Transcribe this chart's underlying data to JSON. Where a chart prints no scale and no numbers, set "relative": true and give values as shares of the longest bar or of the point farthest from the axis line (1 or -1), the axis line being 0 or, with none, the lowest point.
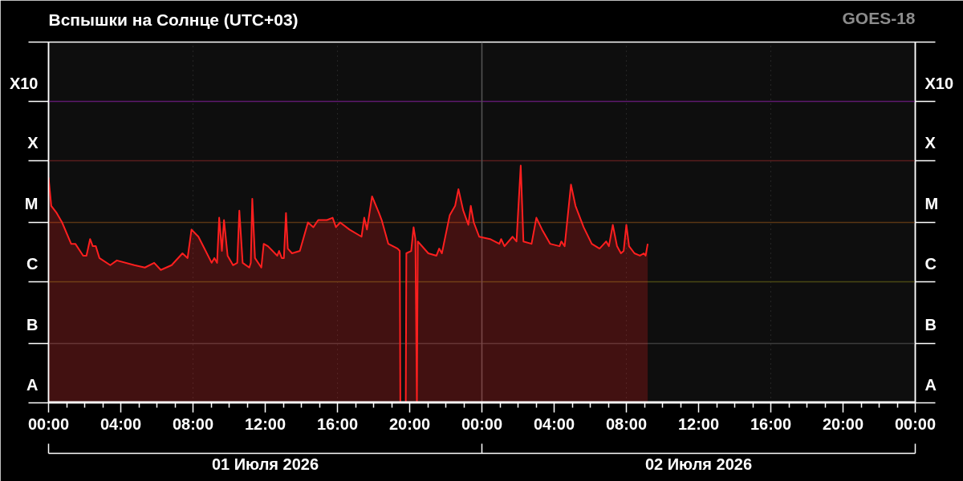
{
  "chart_data": {
    "type": "area",
    "title": "Вспышки на Солнце (UTC+03)",
    "annotations": [
      "GOES-18"
    ],
    "relative": true,
    "grid": "x",
    "xlim": [
      "2026-07-01T00:00",
      "2026-07-03T00:00"
    ],
    "xticks": [
      {
        "value": "2026-07-01T00:00",
        "label": "00:00"
      },
      {
        "value": "2026-07-01T01:00",
        "label": null
      },
      {
        "value": "2026-07-01T02:00",
        "label": null
      },
      {
        "value": "2026-07-01T03:00",
        "label": null
      },
      {
        "value": "2026-07-01T04:00",
        "label": "04:00"
      },
      {
        "value": "2026-07-01T05:00",
        "label": null
      },
      {
        "value": "2026-07-01T06:00",
        "label": null
      },
      {
        "value": "2026-07-01T07:00",
        "label": null
      },
      {
        "value": "2026-07-01T08:00",
        "label": "08:00"
      },
      {
        "value": "2026-07-01T09:00",
        "label": null
      },
      {
        "value": "2026-07-01T10:00",
        "label": null
      },
      {
        "value": "2026-07-01T11:00",
        "label": null
      },
      {
        "value": "2026-07-01T12:00",
        "label": "12:00"
      },
      {
        "value": "2026-07-01T13:00",
        "label": null
      },
      {
        "value": "2026-07-01T14:00",
        "label": null
      },
      {
        "value": "2026-07-01T15:00",
        "label": null
      },
      {
        "value": "2026-07-01T16:00",
        "label": "16:00"
      },
      {
        "value": "2026-07-01T17:00",
        "label": null
      },
      {
        "value": "2026-07-01T18:00",
        "label": null
      },
      {
        "value": "2026-07-01T19:00",
        "label": null
      },
      {
        "value": "2026-07-01T20:00",
        "label": "20:00"
      },
      {
        "value": "2026-07-01T21:00",
        "label": null
      },
      {
        "value": "2026-07-01T22:00",
        "label": null
      },
      {
        "value": "2026-07-01T23:00",
        "label": null
      },
      {
        "value": "2026-07-02T00:00",
        "label": "00:00"
      },
      {
        "value": "2026-07-02T01:00",
        "label": null
      },
      {
        "value": "2026-07-02T02:00",
        "label": null
      },
      {
        "value": "2026-07-02T03:00",
        "label": null
      },
      {
        "value": "2026-07-02T04:00",
        "label": "04:00"
      },
      {
        "value": "2026-07-02T05:00",
        "label": null
      },
      {
        "value": "2026-07-02T06:00",
        "label": null
      },
      {
        "value": "2026-07-02T07:00",
        "label": null
      },
      {
        "value": "2026-07-02T08:00",
        "label": "08:00"
      },
      {
        "value": "2026-07-02T09:00",
        "label": null
      },
      {
        "value": "2026-07-02T10:00",
        "label": null
      },
      {
        "value": "2026-07-02T11:00",
        "label": null
      },
      {
        "value": "2026-07-02T12:00",
        "label": "12:00"
      },
      {
        "value": "2026-07-02T13:00",
        "label": null
      },
      {
        "value": "2026-07-02T14:00",
        "label": null
      },
      {
        "value": "2026-07-02T15:00",
        "label": null
      },
      {
        "value": "2026-07-02T16:00",
        "label": "16:00"
      },
      {
        "value": "2026-07-02T17:00",
        "label": null
      },
      {
        "value": "2026-07-02T18:00",
        "label": null
      },
      {
        "value": "2026-07-02T19:00",
        "label": null
      },
      {
        "value": "2026-07-02T20:00",
        "label": "20:00"
      },
      {
        "value": "2026-07-02T21:00",
        "label": null
      },
      {
        "value": "2026-07-02T22:00",
        "label": null
      },
      {
        "value": "2026-07-02T23:00",
        "label": null
      },
      {
        "value": "2026-07-03T00:00",
        "label": "00:00"
      }
    ],
    "x2lim": [
      "2026-07-01T00:00",
      "2026-07-03T00:00"
    ],
    "x2ticks": [
      {
        "value": "2026-07-01T00:00",
        "label": null
      },
      {
        "value": "2026-07-01T12:00",
        "label": "01 Июля 2026"
      },
      {
        "value": "2026-07-02T00:00",
        "label": null
      },
      {
        "value": "2026-07-02T12:00",
        "label": "02 Июля 2026"
      },
      {
        "value": "2026-07-03T00:00",
        "label": null
      }
    ],
    "ref_lines": [
      {
        "axis": "y",
        "value": 0,
        "label": "A",
        "color": "#ffffff"
      },
      {
        "axis": "y",
        "value": 0.25,
        "label": "B",
        "color": "#3c3c3c"
      },
      {
        "axis": "y",
        "value": 0.51,
        "label": "C",
        "color": "#4a4814"
      },
      {
        "axis": "y",
        "value": 0.76,
        "label": "M",
        "color": "#5a3614"
      },
      {
        "axis": "y",
        "value": 1.02,
        "label": "X",
        "color": "#5a1e1e"
      },
      {
        "axis": "y",
        "value": 1.27,
        "label": "X10",
        "color": "#5e1a6e"
      },
      {
        "axis": "x",
        "value": "2026-07-02T00:00",
        "color": "#555555"
      }
    ],
    "x": [
      "2026-07-01T00:00",
      "2026-07-01T00:09",
      "2026-07-01T00:27",
      "2026-07-01T00:45",
      "2026-07-01T01:15",
      "2026-07-01T01:29",
      "2026-07-01T01:55",
      "2026-07-01T02:06",
      "2026-07-01T02:18",
      "2026-07-01T02:27",
      "2026-07-01T02:37",
      "2026-07-01T02:49",
      "2026-07-01T03:25",
      "2026-07-01T03:47",
      "2026-07-01T04:45",
      "2026-07-01T05:20",
      "2026-07-01T05:51",
      "2026-07-01T06:13",
      "2026-07-01T06:49",
      "2026-07-01T07:25",
      "2026-07-01T07:42",
      "2026-07-01T07:55",
      "2026-07-01T08:18",
      "2026-07-01T09:02",
      "2026-07-01T09:11",
      "2026-07-01T09:20",
      "2026-07-01T09:27",
      "2026-07-01T09:36",
      "2026-07-01T09:43",
      "2026-07-01T09:55",
      "2026-07-01T10:13",
      "2026-07-01T10:27",
      "2026-07-01T10:34",
      "2026-07-01T10:45",
      "2026-07-01T11:07",
      "2026-07-01T11:12",
      "2026-07-01T11:17",
      "2026-07-01T11:26",
      "2026-07-01T11:47",
      "2026-07-01T11:55",
      "2026-07-01T12:09",
      "2026-07-01T12:40",
      "2026-07-01T12:46",
      "2026-07-01T12:55",
      "2026-07-01T13:02",
      "2026-07-01T13:09",
      "2026-07-01T13:15",
      "2026-07-01T13:29",
      "2026-07-01T13:55",
      "2026-07-01T14:22",
      "2026-07-01T14:40",
      "2026-07-01T14:56",
      "2026-07-01T15:25",
      "2026-07-01T15:44",
      "2026-07-01T15:55",
      "2026-07-01T16:09",
      "2026-07-01T16:40",
      "2026-07-01T17:20",
      "2026-07-01T17:29",
      "2026-07-01T17:38",
      "2026-07-01T17:55",
      "2026-07-01T18:18",
      "2026-07-01T18:27",
      "2026-07-01T18:49",
      "2026-07-01T19:20",
      "2026-07-01T19:27",
      "2026-07-01T19:29",
      "2026-07-01T19:47",
      "2026-07-01T19:49",
      "2026-07-01T20:05",
      "2026-07-01T20:13",
      "2026-07-01T20:19",
      "2026-07-01T20:24",
      "2026-07-01T20:27",
      "2026-07-01T21:02",
      "2026-07-01T21:29",
      "2026-07-01T21:38",
      "2026-07-01T21:47",
      "2026-07-01T22:13",
      "2026-07-01T22:31",
      "2026-07-01T22:42",
      "2026-07-01T22:58",
      "2026-07-01T23:15",
      "2026-07-01T23:23",
      "2026-07-01T23:33",
      "2026-07-01T23:51",
      "2026-07-02T00:27",
      "2026-07-02T00:58",
      "2026-07-02T01:04",
      "2026-07-02T01:15",
      "2026-07-02T01:42",
      "2026-07-02T01:55",
      "2026-07-02T02:09",
      "2026-07-02T02:18",
      "2026-07-02T02:45",
      "2026-07-02T03:01",
      "2026-07-02T03:20",
      "2026-07-02T03:47",
      "2026-07-02T04:18",
      "2026-07-02T04:24",
      "2026-07-02T04:35",
      "2026-07-02T04:56",
      "2026-07-02T05:11",
      "2026-07-02T05:38",
      "2026-07-02T06:05",
      "2026-07-02T06:31",
      "2026-07-02T06:53",
      "2026-07-02T07:02",
      "2026-07-02T07:15",
      "2026-07-02T07:29",
      "2026-07-02T07:42",
      "2026-07-02T07:51",
      "2026-07-02T08:00",
      "2026-07-02T08:09",
      "2026-07-02T08:27",
      "2026-07-02T08:45",
      "2026-07-02T08:58",
      "2026-07-02T09:04",
      "2026-07-02T09:11"
    ],
    "series": [
      {
        "color": "#ff1f1f",
        "values": [
          0.95,
          0.83,
          0.8,
          0.76,
          0.67,
          0.67,
          0.62,
          0.62,
          0.69,
          0.66,
          0.66,
          0.61,
          0.58,
          0.6,
          0.58,
          0.57,
          0.59,
          0.56,
          0.58,
          0.63,
          0.61,
          0.73,
          0.7,
          0.59,
          0.61,
          0.59,
          0.78,
          0.64,
          0.77,
          0.62,
          0.58,
          0.59,
          0.81,
          0.59,
          0.57,
          0.59,
          0.86,
          0.61,
          0.57,
          0.67,
          0.66,
          0.62,
          0.64,
          0.61,
          0.61,
          0.8,
          0.65,
          0.63,
          0.64,
          0.76,
          0.74,
          0.77,
          0.77,
          0.78,
          0.74,
          0.76,
          0.73,
          0.7,
          0.78,
          0.73,
          0.87,
          0.8,
          0.77,
          0.67,
          0.65,
          0.64,
          0,
          0,
          0.63,
          0.64,
          0.74,
          0.69,
          0,
          0.68,
          0.63,
          0.62,
          0.65,
          0.63,
          0.79,
          0.83,
          0.9,
          0.81,
          0.75,
          0.83,
          0.76,
          0.7,
          0.69,
          0.67,
          0.69,
          0.66,
          0.7,
          0.68,
          1,
          0.68,
          0.67,
          0.78,
          0.73,
          0.67,
          0.66,
          0.68,
          0.66,
          0.92,
          0.83,
          0.74,
          0.67,
          0.65,
          0.68,
          0.66,
          0.75,
          0.66,
          0.63,
          0.64,
          0.75,
          0.66,
          0.63,
          0.62,
          0.63,
          0.62,
          0.67
        ]
      }
    ]
  }
}
